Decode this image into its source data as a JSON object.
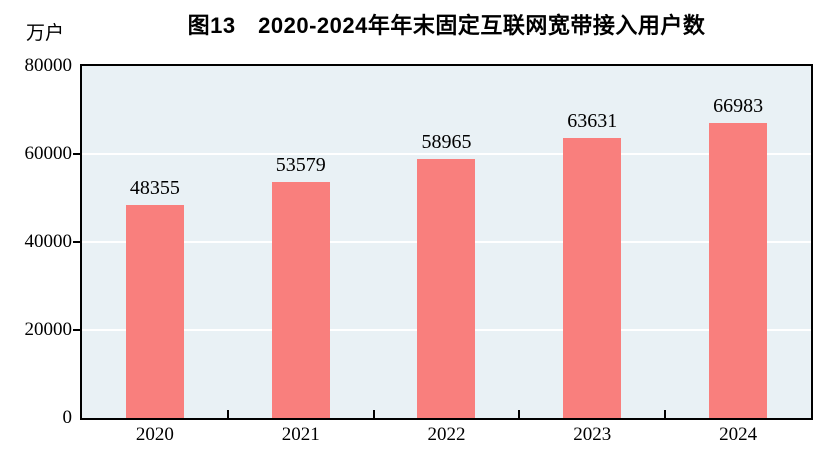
{
  "figure": {
    "title": "图13　2020-2024年年末固定互联网宽带接入用户数",
    "unit_label": "万户"
  },
  "chart_data": {
    "type": "bar",
    "title": "图13　2020-2024年年末固定互联网宽带接入用户数",
    "unit": "万户",
    "categories": [
      "2020",
      "2021",
      "2022",
      "2023",
      "2024"
    ],
    "values": [
      48355,
      53579,
      58965,
      63631,
      66983
    ],
    "xlabel": "",
    "ylabel": "万户",
    "ylim": [
      0,
      80000
    ],
    "yticks": [
      0,
      20000,
      40000,
      60000,
      80000
    ],
    "grid": true,
    "data_labels": true,
    "legend": false,
    "colors": {
      "bar_fill": "#f97f7d",
      "plot_background": "#e9f1f5",
      "gridline": "#ffffff",
      "axis_frame": "#000000",
      "text": "#000000"
    }
  }
}
